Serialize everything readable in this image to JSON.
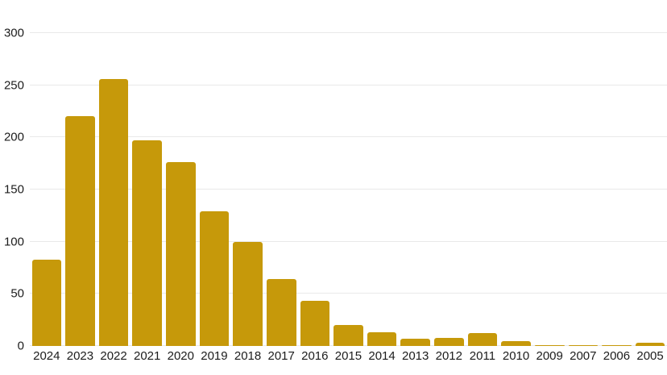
{
  "chart_data": {
    "type": "bar",
    "title": "",
    "xlabel": "",
    "ylabel": "",
    "categories": [
      "2024",
      "2023",
      "2022",
      "2021",
      "2020",
      "2019",
      "2018",
      "2017",
      "2016",
      "2015",
      "2014",
      "2013",
      "2012",
      "2011",
      "2010",
      "2009",
      "2007",
      "2006",
      "2005"
    ],
    "values": [
      83,
      220,
      256,
      197,
      176,
      129,
      100,
      64,
      43,
      20,
      13,
      7,
      8,
      12,
      5,
      1,
      1,
      1,
      3
    ],
    "ylim": [
      0,
      300
    ],
    "yticks": [
      0,
      50,
      100,
      150,
      200,
      250,
      300
    ],
    "grid": true,
    "legend": "none",
    "colors": {
      "bar": "#C6990A",
      "gridline": "#E9E9E9",
      "tick_label": "#1C1C1C",
      "background": "#FFFFFF"
    }
  }
}
